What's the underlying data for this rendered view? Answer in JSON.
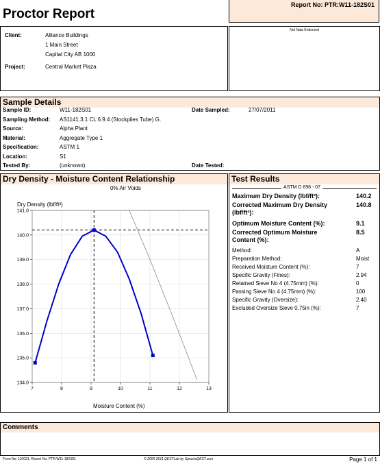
{
  "header": {
    "title": "Proctor Report",
    "report_no": "Report No: PTR:W11-182S01",
    "endorsement": "Not Nata Endorsed"
  },
  "client": {
    "client_label": "Client:",
    "client_name": "Alliance Buildings",
    "address1": "1 Main Street",
    "address2": "Capital City  AB  1000",
    "project_label": "Project:",
    "project_name": "Central Market Plaza"
  },
  "sample": {
    "title": "Sample Details",
    "rows": [
      {
        "label": "Sample ID:",
        "value": "W11-182S01"
      },
      {
        "label": "Sampling Method:",
        "value": "AS1141.3.1 CL 6.9.4 (Stockpiles Tube) G."
      },
      {
        "label": "Source:",
        "value": "Alpha Plant"
      },
      {
        "label": "Material:",
        "value": "Aggregate Type 1"
      },
      {
        "label": "Specification:",
        "value": "ASTM 1"
      },
      {
        "label": "Location:",
        "value": "S1"
      },
      {
        "label": "Tested By:",
        "value": "(unknown)"
      }
    ],
    "date_sampled_label": "Date Sampled:",
    "date_sampled": "27/07/2011",
    "date_tested_label": "Date Tested:",
    "date_tested": ""
  },
  "chart_section": {
    "title": "Dry Density - Moisture Content Relationship"
  },
  "chart_data": {
    "type": "line",
    "legend": "0% Air Voids",
    "ylabel": "Dry Density (lbf/ft³)",
    "xlabel": "Moisture Content (%)",
    "xlim": [
      7,
      13
    ],
    "ylim": [
      134.0,
      141.0
    ],
    "x_ticks": [
      "7",
      "8",
      "9",
      "10",
      "11",
      "12",
      "13"
    ],
    "y_ticks": [
      "134.0",
      "135.0",
      "136.0",
      "137.0",
      "138.0",
      "139.0",
      "140.0",
      "141.0"
    ],
    "series": [
      {
        "x": [
          7.1,
          7.5,
          7.9,
          8.3,
          8.7,
          9.1,
          9.5,
          9.9,
          10.3,
          10.7,
          11.1
        ],
        "y": [
          134.8,
          136.5,
          138.0,
          139.2,
          139.95,
          140.2,
          139.95,
          139.3,
          138.2,
          136.8,
          135.1
        ],
        "color": "#0000cc"
      },
      {
        "x": [
          10.3,
          11.0,
          11.8,
          12.6
        ],
        "y": [
          141.0,
          139.0,
          136.6,
          134.1
        ],
        "color": "#888888"
      }
    ],
    "markers": [
      {
        "x": 7.1,
        "y": 134.8
      },
      {
        "x": 9.1,
        "y": 140.2
      },
      {
        "x": 11.1,
        "y": 135.1
      }
    ],
    "crosshair": {
      "x": 9.1,
      "y": 140.2
    }
  },
  "results": {
    "title": "Test Results",
    "method_header": "ASTM D 698 - 07",
    "big_rows": [
      {
        "label": "Maximum Dry Density (lbf/ft³):",
        "value": "140.2"
      },
      {
        "label": "Corrected Maximum Dry Density (lbf/ft³):",
        "value": "140.8"
      },
      {
        "label": "Optimum Moisture Content (%):",
        "value": "9.1"
      },
      {
        "label": "Corrected Optimum Moisture Content (%):",
        "value": "8.5"
      }
    ],
    "small_rows": [
      {
        "label": "Method:",
        "value": "A"
      },
      {
        "label": "Preparation Method:",
        "value": "Moist"
      },
      {
        "label": "Received Moisture Content (%):",
        "value": "7"
      },
      {
        "label": "Specific Gravity (Fines):",
        "value": "2.94"
      },
      {
        "label": "Retained Sieve No 4 (4.75mm) (%):",
        "value": "0"
      },
      {
        "label": "Passing Sieve No 4 (4.75mm) (%):",
        "value": "100"
      },
      {
        "label": "Specific Gravity (Oversize):",
        "value": "2.40"
      },
      {
        "label": "Excluded Oversize Sieve 0.75in (%):",
        "value": "7"
      }
    ]
  },
  "comments": {
    "title": "Comments"
  },
  "footer": {
    "left": "Form No: 110031, Report No: PTR:W11-182S01",
    "center": "© 2000-2011 QESTLab by SpectraQEST.com",
    "page": "Page 1 of 1"
  }
}
